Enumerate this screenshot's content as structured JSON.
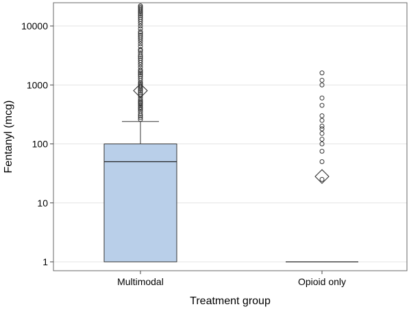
{
  "chart_data": {
    "type": "boxplot",
    "xlabel": "Treatment group",
    "ylabel": "Fentanyl (mcg)",
    "y_scale": "log",
    "ylim": [
      0.85,
      25000
    ],
    "y_ticks": [
      1,
      10,
      100,
      1000,
      10000
    ],
    "y_tick_labels": [
      "1",
      "10",
      "100",
      "1000",
      "10000"
    ],
    "grid": true,
    "colors": {
      "box_fill": "#b9cfe9"
    },
    "categories": [
      "Multimodal",
      "Opioid only"
    ],
    "groups": [
      {
        "name": "Multimodal",
        "min": 1,
        "q1": 1,
        "median": 50,
        "q3": 100,
        "whisker_high": 240,
        "mean": 800,
        "outliers": [
          260,
          280,
          300,
          320,
          350,
          380,
          400,
          420,
          450,
          480,
          500,
          520,
          550,
          600,
          650,
          700,
          750,
          800,
          850,
          900,
          950,
          1000,
          1050,
          1100,
          1200,
          1300,
          1400,
          1500,
          1600,
          1700,
          1800,
          2000,
          2200,
          2400,
          2600,
          2800,
          3000,
          3200,
          3500,
          3800,
          4000,
          4500,
          5000,
          5500,
          6000,
          6500,
          7000,
          7500,
          8000,
          9000,
          10000,
          11000,
          12000,
          13000,
          14000,
          15000,
          16000,
          17000,
          18000,
          19000,
          20000,
          21000,
          22000
        ]
      },
      {
        "name": "Opioid only",
        "min": 1,
        "q1": 1,
        "median": 1,
        "q3": 1,
        "whisker_high": 1,
        "mean": 28,
        "outliers": [
          25,
          50,
          75,
          100,
          120,
          150,
          180,
          200,
          250,
          300,
          450,
          600,
          1000,
          1200,
          1600
        ]
      }
    ]
  }
}
